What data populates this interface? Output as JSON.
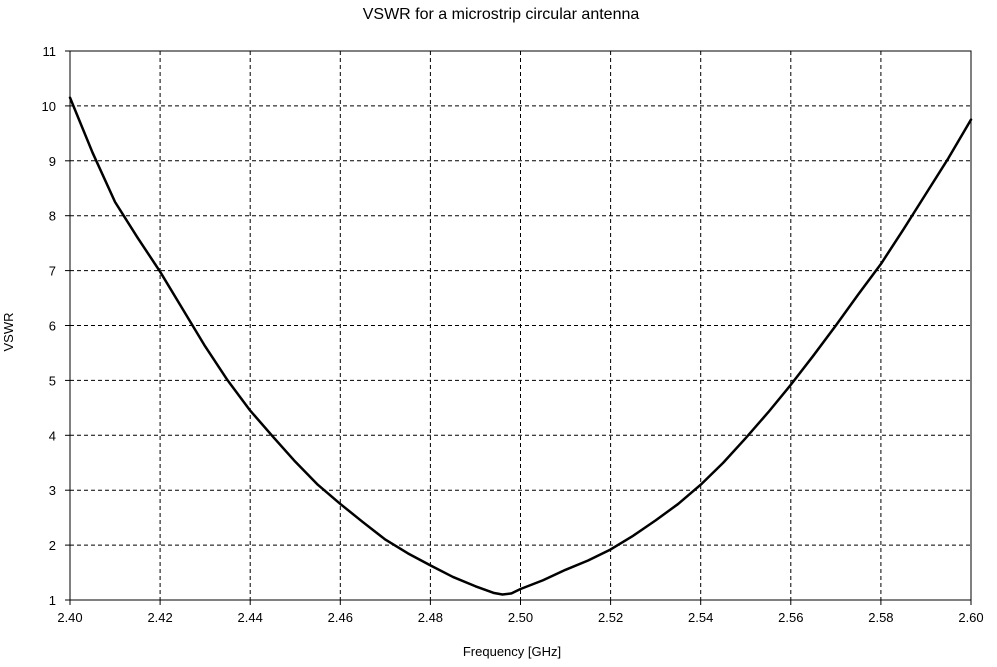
{
  "chart_data": {
    "type": "line",
    "title": "VSWR for a microstrip circular antenna",
    "xlabel": "Frequency [GHz]",
    "ylabel": "VSWR",
    "xlim": [
      2.4,
      2.6
    ],
    "ylim": [
      1,
      11
    ],
    "x_ticks": [
      "2.40",
      "2.42",
      "2.44",
      "2.46",
      "2.48",
      "2.50",
      "2.52",
      "2.54",
      "2.56",
      "2.58",
      "2.60"
    ],
    "y_ticks": [
      "1",
      "2",
      "3",
      "4",
      "5",
      "6",
      "7",
      "8",
      "9",
      "10",
      "11"
    ],
    "grid": true,
    "grid_style": "dashed",
    "series": [
      {
        "color": "#000000",
        "x": [
          2.4,
          2.405,
          2.41,
          2.415,
          2.42,
          2.425,
          2.43,
          2.435,
          2.44,
          2.445,
          2.45,
          2.455,
          2.46,
          2.465,
          2.47,
          2.475,
          2.48,
          2.485,
          2.49,
          2.494,
          2.496,
          2.498,
          2.5,
          2.505,
          2.51,
          2.515,
          2.52,
          2.525,
          2.53,
          2.535,
          2.54,
          2.545,
          2.55,
          2.555,
          2.56,
          2.565,
          2.57,
          2.575,
          2.58,
          2.585,
          2.59,
          2.595,
          2.6
        ],
        "y": [
          10.15,
          9.15,
          8.25,
          7.6,
          6.98,
          6.3,
          5.62,
          5.0,
          4.45,
          3.98,
          3.52,
          3.1,
          2.75,
          2.42,
          2.1,
          1.85,
          1.63,
          1.42,
          1.25,
          1.13,
          1.1,
          1.12,
          1.2,
          1.36,
          1.55,
          1.72,
          1.92,
          2.17,
          2.45,
          2.75,
          3.1,
          3.5,
          3.95,
          4.42,
          4.92,
          5.45,
          6.0,
          6.57,
          7.12,
          7.75,
          8.4,
          9.05,
          9.75
        ]
      }
    ]
  }
}
